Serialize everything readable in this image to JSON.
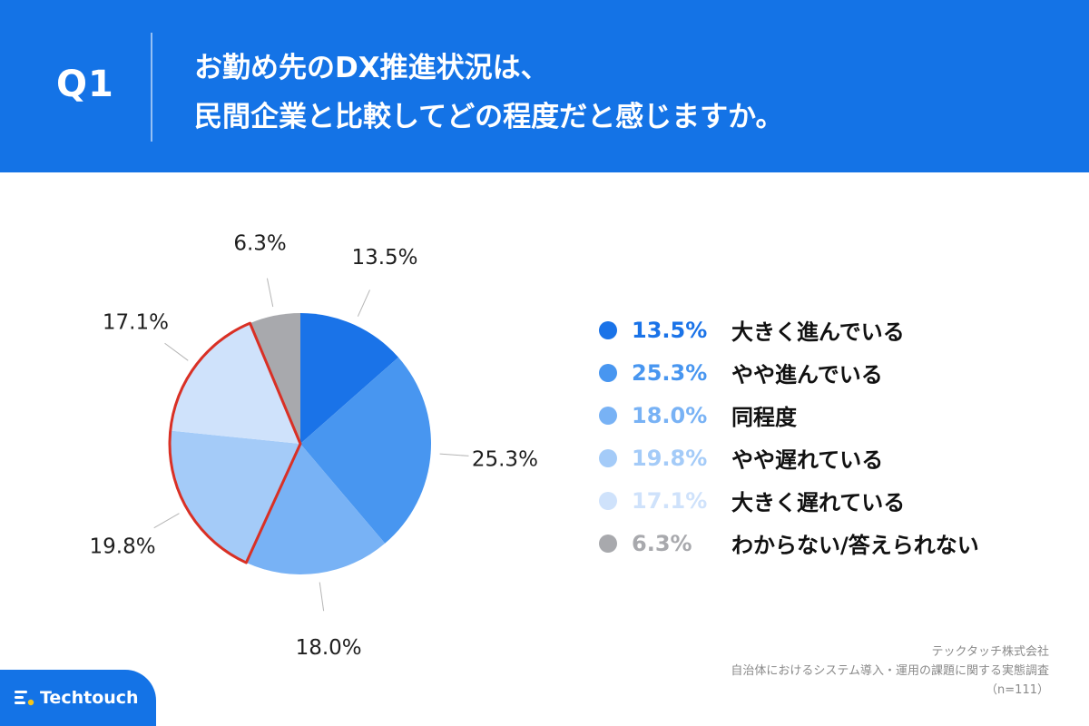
{
  "header": {
    "q_label": "Q1",
    "title_line1": "お勤め先のDX推進状況は、",
    "title_line2": "民間企業と比較してどの程度だと感じますか。"
  },
  "chart_data": {
    "type": "pie",
    "title": "お勤め先のDX推進状況は、民間企業と比較してどの程度だと感じますか。",
    "categories": [
      "大きく進んでいる",
      "やや進んでいる",
      "同程度",
      "やや遅れている",
      "大きく遅れている",
      "わからない/答えられない"
    ],
    "values": [
      13.5,
      25.3,
      18.0,
      19.8,
      17.1,
      6.3
    ],
    "labels": [
      "13.5%",
      "25.3%",
      "18.0%",
      "19.8%",
      "17.1%",
      "6.3%"
    ],
    "colors": [
      "#1a73e8",
      "#4896f0",
      "#78b2f5",
      "#a4cbf8",
      "#cfe2fb",
      "#a8a9ad"
    ],
    "highlight": [
      "やや遅れている",
      "大きく遅れている"
    ],
    "highlight_color": "#d93025",
    "start_angle_deg": 0,
    "direction": "clockwise"
  },
  "legend": {
    "items": [
      {
        "pct": "13.5%",
        "label": "大きく進んでいる",
        "color": "#1a73e8"
      },
      {
        "pct": "25.3%",
        "label": "やや進んでいる",
        "color": "#4896f0"
      },
      {
        "pct": "18.0%",
        "label": "同程度",
        "color": "#78b2f5"
      },
      {
        "pct": "19.8%",
        "label": "やや遅れている",
        "color": "#a4cbf8"
      },
      {
        "pct": "17.1%",
        "label": "大きく遅れている",
        "color": "#cfe2fb"
      },
      {
        "pct": "6.3%",
        "label": "わからない/答えられない",
        "color": "#a8a9ad"
      }
    ]
  },
  "footer": {
    "company": "テックタッチ株式会社",
    "survey": "自治体におけるシステム導入・運用の課題に関する実態調査",
    "n": "（n=111）"
  },
  "logo": {
    "text": "Techtouch"
  }
}
